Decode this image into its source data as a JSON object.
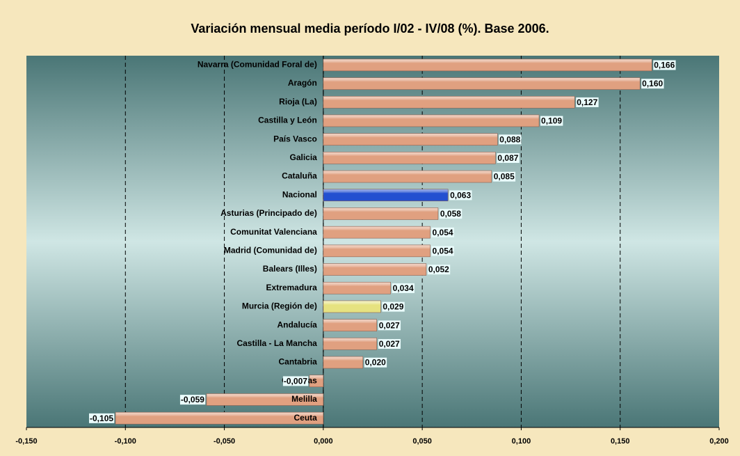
{
  "chart_data": {
    "type": "barh",
    "title": "Variación mensual media período I/02 - IV/08 (%). Base 2006.",
    "categories": [
      "Navarra (Comunidad Foral de)",
      "Aragón",
      "Rioja (La)",
      "Castilla y León",
      "País Vasco",
      "Galicia",
      "Cataluña",
      "Nacional",
      "Asturias (Principado de)",
      "Comunitat Valenciana",
      "Madrid (Comunidad de)",
      "Balears (Illes)",
      "Extremadura",
      "Murcia (Región de)",
      "Andalucía",
      "Castilla - La Mancha",
      "Cantabria",
      "Canarias",
      "Melilla",
      "Ceuta"
    ],
    "values": [
      0.166,
      0.16,
      0.127,
      0.109,
      0.088,
      0.087,
      0.085,
      0.063,
      0.058,
      0.054,
      0.054,
      0.052,
      0.034,
      0.029,
      0.027,
      0.027,
      0.02,
      -0.007,
      -0.059,
      -0.105
    ],
    "value_labels": [
      "0,166",
      "0,160",
      "0,127",
      "0,109",
      "0,088",
      "0,087",
      "0,085",
      "0,063",
      "0,058",
      "0,054",
      "0,054",
      "0,052",
      "0,034",
      "0,029",
      "0,027",
      "0,027",
      "0,020",
      "-0,007",
      "-0,059",
      "-0,105"
    ],
    "colors": [
      "#e0a080",
      "#e0a080",
      "#e0a080",
      "#e0a080",
      "#e0a080",
      "#e0a080",
      "#e0a080",
      "#2250d0",
      "#e0a080",
      "#e0a080",
      "#e0a080",
      "#e0a080",
      "#e0a080",
      "#e6e280",
      "#e0a080",
      "#e0a080",
      "#e0a080",
      "#e0a080",
      "#e0a080",
      "#e0a080"
    ],
    "xlim": [
      -0.15,
      0.2
    ],
    "xticks": [
      {
        "value": -0.15,
        "label": "-0,150"
      },
      {
        "value": -0.1,
        "label": "-0,100"
      },
      {
        "value": -0.05,
        "label": "-0,050"
      },
      {
        "value": 0,
        "label": "0,000"
      },
      {
        "value": 0.05,
        "label": "0,050"
      },
      {
        "value": 0.1,
        "label": "0,100"
      },
      {
        "value": 0.15,
        "label": "0,150"
      },
      {
        "value": 0.2,
        "label": "0,200"
      }
    ],
    "grid": true
  }
}
